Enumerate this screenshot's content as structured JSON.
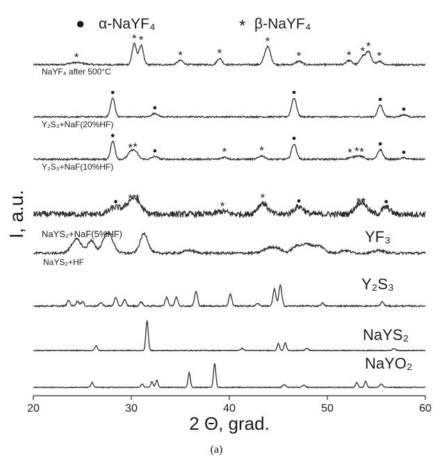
{
  "chart_data": {
    "type": "line",
    "xlabel": "2 Θ, grad.",
    "ylabel": "I, a.u.",
    "xlim": [
      20,
      60
    ],
    "xticks": [
      "20",
      "30",
      "40",
      "50",
      "60"
    ],
    "grid": false,
    "legend": [
      {
        "symbol": "●",
        "label": "α-NaYF₄"
      },
      {
        "symbol": "*",
        "label": "β-NaYF₄"
      }
    ],
    "series": [
      {
        "label": "NaYF₄ after 500°C",
        "baseline": 93,
        "noise": 1.2,
        "peaks": [
          [
            24.4,
            0.7,
            3
          ],
          [
            30.3,
            0.22,
            30
          ],
          [
            31.0,
            0.22,
            28
          ],
          [
            35.0,
            0.3,
            6
          ],
          [
            39.0,
            0.25,
            9
          ],
          [
            43.9,
            0.3,
            26
          ],
          [
            47.1,
            0.3,
            5
          ],
          [
            52.2,
            0.3,
            6
          ],
          [
            53.6,
            0.25,
            12
          ],
          [
            54.2,
            0.25,
            19
          ],
          [
            55.3,
            0.3,
            5
          ]
        ],
        "markers": [
          [
            24.4,
            "*"
          ],
          [
            30.3,
            "*"
          ],
          [
            31.0,
            "*"
          ],
          [
            35.0,
            "*"
          ],
          [
            39.0,
            "*"
          ],
          [
            43.9,
            "*"
          ],
          [
            47.1,
            "*"
          ],
          [
            52.2,
            "*"
          ],
          [
            53.6,
            "*"
          ],
          [
            54.2,
            "*"
          ],
          [
            55.3,
            "*"
          ]
        ]
      },
      {
        "label": "Y₂S₃+NaF(20%HF)",
        "baseline": 168,
        "noise": 1.0,
        "peaks": [
          [
            28.1,
            0.22,
            27
          ],
          [
            32.4,
            0.3,
            5
          ],
          [
            46.6,
            0.25,
            27
          ],
          [
            55.4,
            0.25,
            17
          ],
          [
            57.8,
            0.3,
            3
          ]
        ],
        "markers": [
          [
            28.1,
            "●"
          ],
          [
            32.4,
            "●"
          ],
          [
            46.6,
            "●"
          ],
          [
            55.4,
            "●"
          ],
          [
            57.8,
            "●"
          ]
        ]
      },
      {
        "label": "Y₂S₃+NaF(10%HF)",
        "baseline": 229,
        "noise": 1.2,
        "peaks": [
          [
            28.1,
            0.22,
            26
          ],
          [
            29.9,
            0.3,
            9
          ],
          [
            30.4,
            0.3,
            10
          ],
          [
            32.4,
            0.3,
            4
          ],
          [
            39.5,
            0.3,
            3
          ],
          [
            43.3,
            0.3,
            5
          ],
          [
            46.6,
            0.25,
            22
          ],
          [
            52.3,
            0.3,
            2
          ],
          [
            53.0,
            0.3,
            4
          ],
          [
            53.5,
            0.3,
            3
          ],
          [
            55.4,
            0.25,
            14
          ],
          [
            57.8,
            0.3,
            2
          ]
        ],
        "markers": [
          [
            28.1,
            "●"
          ],
          [
            29.9,
            "*"
          ],
          [
            30.4,
            "*"
          ],
          [
            32.4,
            "●"
          ],
          [
            39.5,
            "*"
          ],
          [
            43.3,
            "*"
          ],
          [
            46.6,
            "●"
          ],
          [
            52.3,
            "*"
          ],
          [
            53.0,
            "*"
          ],
          [
            53.5,
            "*"
          ],
          [
            55.4,
            "●"
          ],
          [
            57.8,
            "●"
          ]
        ]
      },
      {
        "label": "NaYS₂+NaF(5%HF)",
        "baseline": 308,
        "noise": 4.5,
        "peaks": [
          [
            28.4,
            0.6,
            10
          ],
          [
            29.9,
            0.5,
            15
          ],
          [
            30.6,
            0.5,
            15
          ],
          [
            39.3,
            0.5,
            4
          ],
          [
            43.4,
            0.5,
            16
          ],
          [
            47.1,
            0.5,
            11
          ],
          [
            53.2,
            0.5,
            10
          ],
          [
            53.7,
            0.5,
            10
          ],
          [
            56.0,
            0.4,
            10
          ]
        ],
        "markers": [
          [
            28.4,
            "●"
          ],
          [
            29.9,
            "*"
          ],
          [
            30.6,
            "*"
          ],
          [
            39.3,
            "*"
          ],
          [
            43.4,
            "*"
          ],
          [
            47.1,
            "●"
          ],
          [
            53.2,
            "*"
          ],
          [
            53.7,
            "*"
          ],
          [
            56.0,
            "●"
          ]
        ]
      },
      {
        "label": "NaYS₂+HF",
        "tag": "YF₃",
        "baseline": 364,
        "noise": 1.8,
        "peaks": [
          [
            24.4,
            0.5,
            20
          ],
          [
            25.9,
            0.35,
            18
          ],
          [
            27.6,
            0.5,
            30
          ],
          [
            31.3,
            0.4,
            28
          ],
          [
            35.9,
            0.5,
            4
          ],
          [
            43.9,
            0.5,
            6
          ],
          [
            44.8,
            0.5,
            7
          ],
          [
            46.9,
            0.5,
            10
          ],
          [
            48.0,
            0.5,
            12
          ],
          [
            49.2,
            0.5,
            10
          ],
          [
            51.8,
            0.5,
            4
          ],
          [
            55.3,
            0.5,
            4
          ]
        ],
        "markers": []
      },
      {
        "label": "",
        "tag": "Y₂S₃",
        "baseline": 440,
        "noise": 1.0,
        "peaks": [
          [
            23.6,
            0.15,
            8
          ],
          [
            24.5,
            0.15,
            7
          ],
          [
            25.0,
            0.15,
            6
          ],
          [
            26.9,
            0.15,
            5
          ],
          [
            28.4,
            0.15,
            12
          ],
          [
            29.3,
            0.15,
            9
          ],
          [
            31.0,
            0.15,
            6
          ],
          [
            33.6,
            0.15,
            13
          ],
          [
            34.6,
            0.15,
            13
          ],
          [
            36.6,
            0.15,
            21
          ],
          [
            40.1,
            0.15,
            17
          ],
          [
            42.9,
            0.15,
            4
          ],
          [
            44.6,
            0.15,
            24
          ],
          [
            45.2,
            0.15,
            30
          ],
          [
            49.5,
            0.15,
            4
          ],
          [
            55.6,
            0.15,
            6
          ]
        ],
        "markers": []
      },
      {
        "label": "",
        "tag": "NaYS₂",
        "baseline": 504,
        "noise": 0.6,
        "peaks": [
          [
            26.4,
            0.12,
            7
          ],
          [
            31.6,
            0.12,
            43
          ],
          [
            41.3,
            0.15,
            3
          ],
          [
            45.0,
            0.12,
            10
          ],
          [
            45.7,
            0.12,
            11
          ],
          [
            47.9,
            0.15,
            3
          ],
          [
            56.8,
            0.15,
            3
          ]
        ],
        "markers": []
      },
      {
        "label": "",
        "tag": "NaYO₂",
        "baseline": 557,
        "noise": 0.6,
        "peaks": [
          [
            26.0,
            0.12,
            7
          ],
          [
            31.1,
            0.12,
            5
          ],
          [
            32.1,
            0.12,
            8
          ],
          [
            32.6,
            0.12,
            10
          ],
          [
            35.9,
            0.12,
            21
          ],
          [
            38.5,
            0.12,
            34
          ],
          [
            45.6,
            0.15,
            4
          ],
          [
            47.6,
            0.15,
            3
          ],
          [
            53.0,
            0.12,
            7
          ],
          [
            53.9,
            0.12,
            9
          ],
          [
            55.5,
            0.15,
            5
          ]
        ],
        "markers": []
      }
    ]
  },
  "caption": "(a)"
}
